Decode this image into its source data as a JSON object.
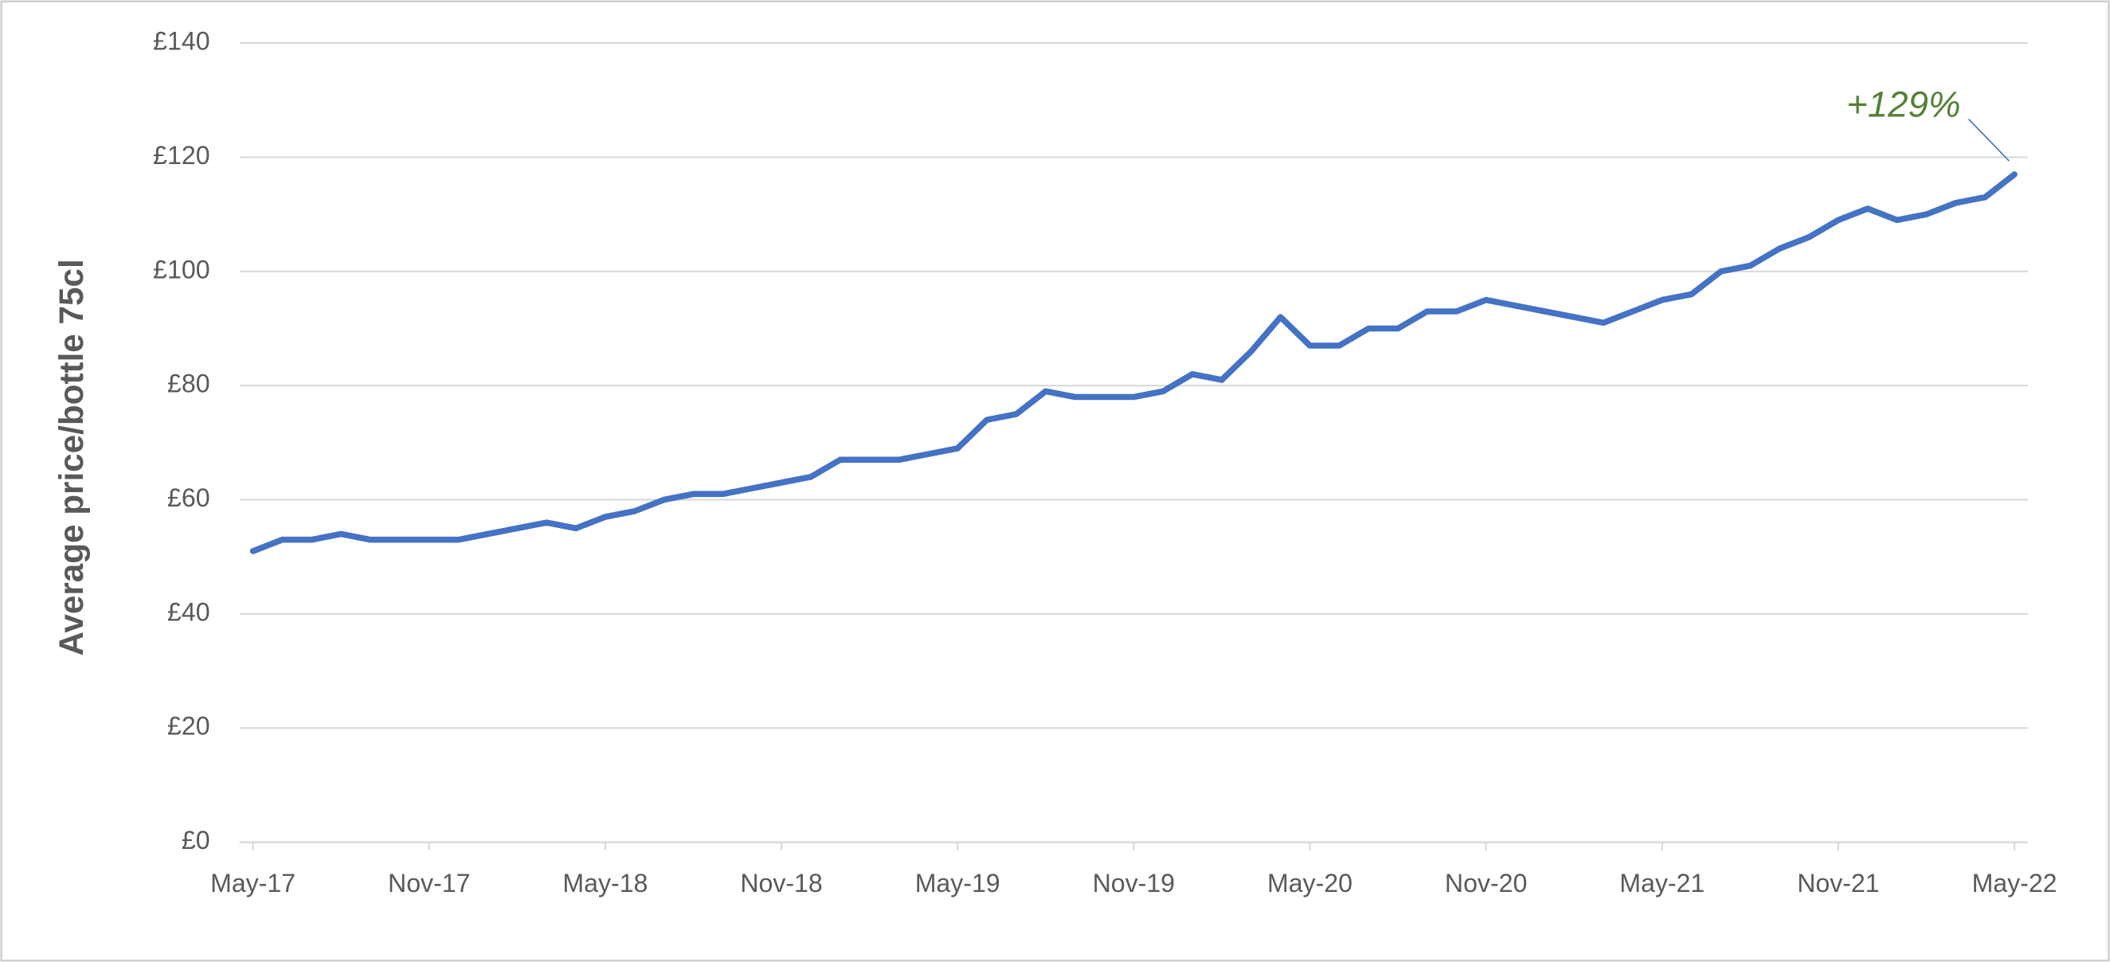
{
  "chart_data": {
    "type": "line",
    "y_label": "Average price/bottle 75cl",
    "annotation": "+129%",
    "annotation_color": "#538135",
    "x": [
      "May-17",
      null,
      null,
      null,
      null,
      null,
      "Nov-17",
      null,
      null,
      null,
      null,
      null,
      "May-18",
      null,
      null,
      null,
      null,
      null,
      "Nov-18",
      null,
      null,
      null,
      null,
      null,
      "May-19",
      null,
      null,
      null,
      null,
      null,
      "Nov-19",
      null,
      null,
      null,
      null,
      null,
      "May-20",
      null,
      null,
      null,
      null,
      null,
      "Nov-20",
      null,
      null,
      null,
      null,
      null,
      "May-21",
      null,
      null,
      null,
      null,
      null,
      "Nov-21",
      null,
      null,
      null,
      null,
      null,
      "May-22"
    ],
    "series": [
      {
        "name": "Average price",
        "color": "#4472c4",
        "values": [
          51,
          53,
          53,
          54,
          53,
          53,
          53,
          53,
          54,
          55,
          56,
          55,
          57,
          58,
          60,
          61,
          61,
          62,
          63,
          64,
          67,
          67,
          67,
          68,
          69,
          74,
          75,
          79,
          78,
          78,
          78,
          79,
          82,
          81,
          86,
          92,
          87,
          87,
          90,
          90,
          93,
          93,
          95,
          94,
          93,
          92,
          91,
          93,
          95,
          96,
          100,
          101,
          104,
          106,
          109,
          111,
          109,
          110,
          112,
          113,
          117
        ]
      }
    ],
    "ylim": [
      0,
      140
    ],
    "yticks": [
      {
        "value": 0,
        "label": "£0"
      },
      {
        "value": 20,
        "label": "£20"
      },
      {
        "value": 40,
        "label": "£40"
      },
      {
        "value": 60,
        "label": "£60"
      },
      {
        "value": 80,
        "label": "£80"
      },
      {
        "value": 100,
        "label": "£100"
      },
      {
        "value": 120,
        "label": "£120"
      },
      {
        "value": 140,
        "label": "£140"
      }
    ],
    "grid": true
  }
}
